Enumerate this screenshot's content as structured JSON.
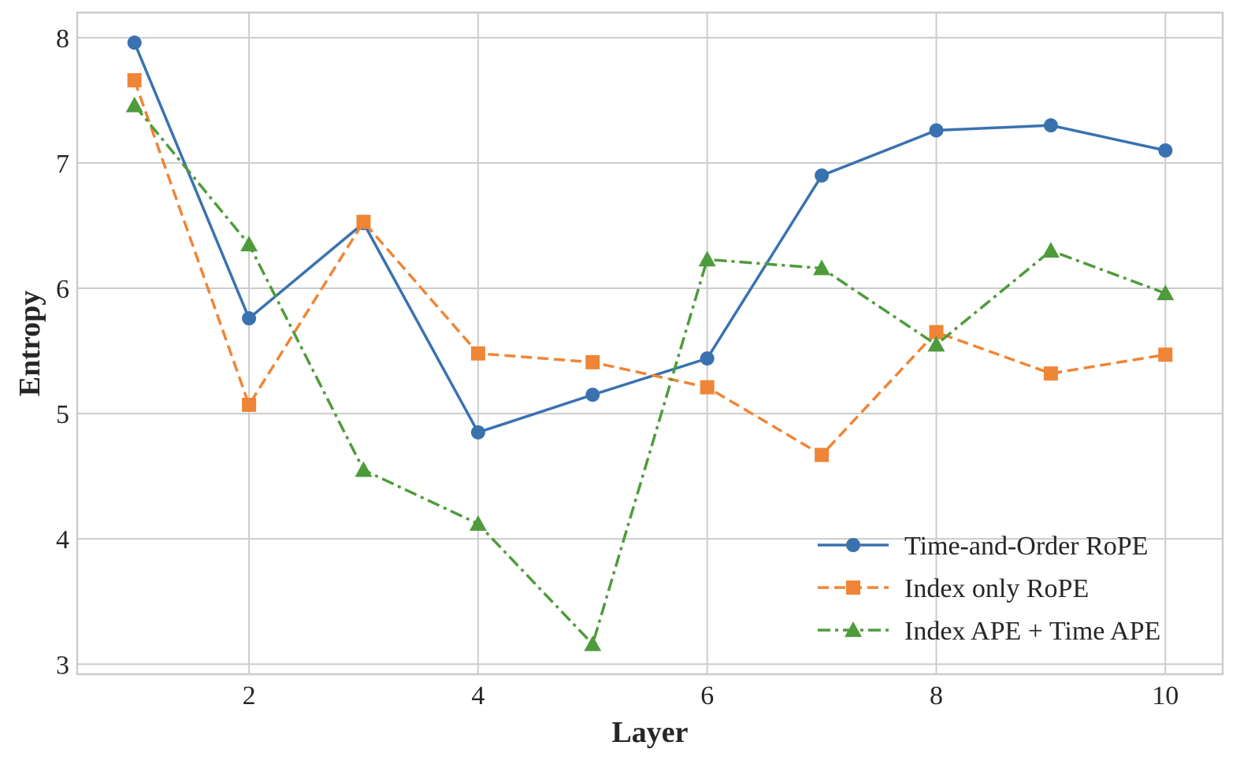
{
  "chart_data": {
    "type": "line",
    "title": "",
    "xlabel": "Layer",
    "ylabel": "Entropy",
    "x": [
      1,
      2,
      3,
      4,
      5,
      6,
      7,
      8,
      9,
      10
    ],
    "xlim": [
      0.5,
      10.5
    ],
    "ylim": [
      2.92,
      8.2
    ],
    "xticks": [
      2,
      4,
      6,
      8,
      10
    ],
    "yticks": [
      3,
      4,
      5,
      6,
      7,
      8
    ],
    "grid": true,
    "legend_position": "lower-right",
    "series": [
      {
        "name": "Time-and-Order RoPE",
        "values": [
          7.96,
          5.76,
          6.52,
          4.85,
          5.15,
          5.44,
          6.9,
          7.26,
          7.3,
          7.1
        ],
        "color": "#3a72b0",
        "marker": "circle",
        "linestyle": "solid"
      },
      {
        "name": "Index only RoPE",
        "values": [
          7.66,
          5.07,
          6.53,
          5.48,
          5.41,
          5.21,
          4.67,
          5.65,
          5.32,
          5.47
        ],
        "color": "#ef8536",
        "marker": "square",
        "linestyle": "dashed"
      },
      {
        "name": "Index APE + Time APE",
        "values": [
          7.46,
          6.35,
          4.55,
          4.12,
          3.16,
          6.23,
          6.16,
          5.55,
          6.3,
          5.96
        ],
        "color": "#4f9b3b",
        "marker": "triangle",
        "linestyle": "dashdot"
      }
    ]
  }
}
